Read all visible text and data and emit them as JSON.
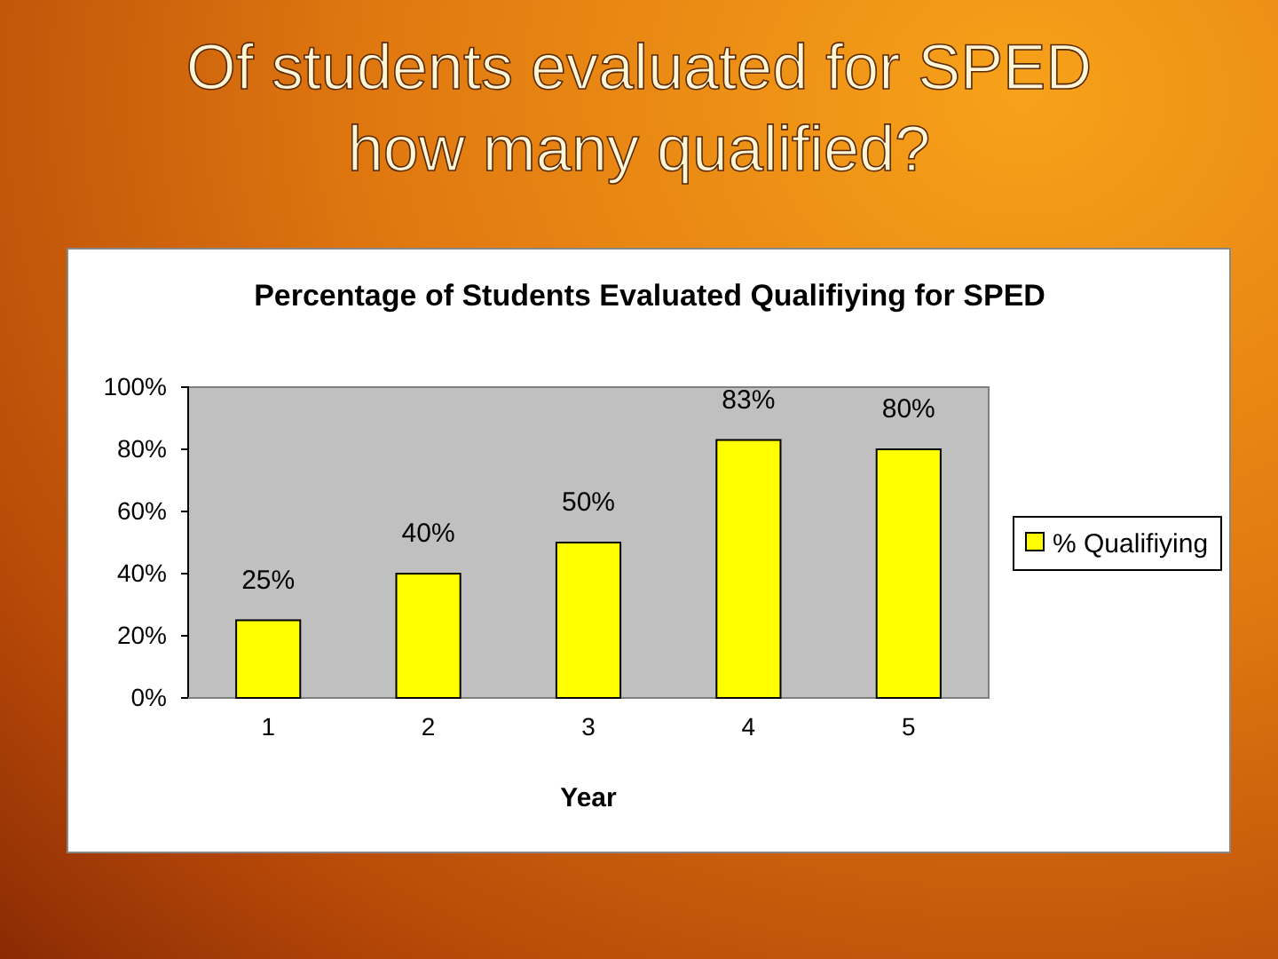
{
  "chart_data": {
    "type": "bar",
    "title": "Of students evaluated for SPED how many qualified?",
    "subtitle": "Percentage of Students Evaluated Qualifiying for SPED",
    "xlabel": "Year",
    "categories": [
      "1",
      "2",
      "3",
      "4",
      "5"
    ],
    "series": [
      {
        "name": "% Qualifiying",
        "color": "#ffff00",
        "values": [
          25,
          40,
          50,
          83,
          80
        ],
        "value_labels": [
          "25%",
          "40%",
          "50%",
          "83%",
          "80%"
        ]
      }
    ],
    "ylim": [
      0,
      100
    ],
    "yticks": [
      {
        "value": 0,
        "label": "0%"
      },
      {
        "value": 20,
        "label": "20%"
      },
      {
        "value": 40,
        "label": "40%"
      },
      {
        "value": 60,
        "label": "60%"
      },
      {
        "value": 80,
        "label": "80%"
      },
      {
        "value": 100,
        "label": "100%"
      }
    ],
    "grid": false,
    "legend": "right"
  }
}
